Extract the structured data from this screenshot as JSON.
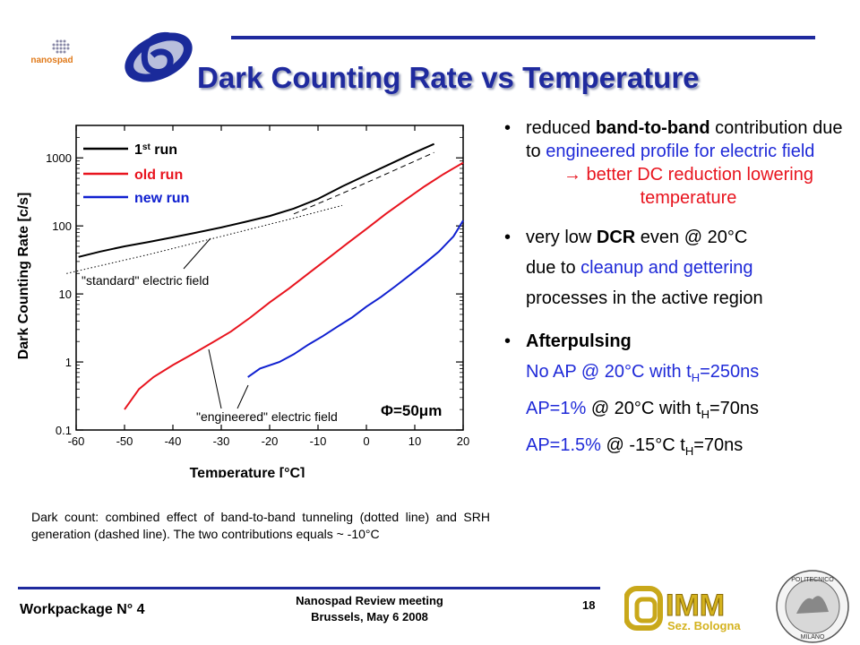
{
  "slide": {
    "title": "Dark Counting Rate vs Temperature",
    "nanospad_logo_text": "nanospad",
    "imm_logo_text": "IMM",
    "imm_logo_sub": "Sez. Bologna",
    "polimi_logo_text_top": "POLITECNICO",
    "polimi_logo_text_bottom": "MILANO"
  },
  "footer": {
    "workpackage": "Workpackage N° 4",
    "meeting_line1": "Nanospad Review meeting",
    "meeting_line2": "Brussels, May 6 2008",
    "page_number": "18"
  },
  "caption": "Dark count: combined effect of band-to-band tunneling (dotted line) and SRH generation (dashed line). The two contributions equals ~ -10°C",
  "bullets": {
    "b1_pre": "reduced ",
    "b1_bold": "band-to-band",
    "b1_post": " contribution due to ",
    "b1_blue": "engineered profile for electric field",
    "b1_red": "→ better DC reduction lowering temperature",
    "b2_pre": "very low ",
    "b2_bold": "DCR",
    "b2_post": " even @ 20°C",
    "b2_line2_pre": "due to ",
    "b2_line2_blue": "cleanup and gettering",
    "b2_line3": "processes in the active region",
    "b3_title": "Afterpulsing",
    "ap1_blue": "No AP",
    "ap1_rest": " @ 20°C with t",
    "ap1_sub": "H",
    "ap1_end": "=250ns",
    "ap2_blue": "AP=1%",
    "ap2_rest": " @ 20°C with t",
    "ap2_sub": "H",
    "ap2_end": "=70ns",
    "ap3_blue": "AP=1.5%",
    "ap3_rest": " @ -15°C  t",
    "ap3_sub": "H",
    "ap3_end": "=70ns"
  },
  "chart_data": {
    "type": "line",
    "xlabel": "Temperature [°C]",
    "ylabel": "Dark Counting Rate [c/s]",
    "xlim": [
      -60,
      20
    ],
    "ylim": [
      0.1,
      3000
    ],
    "yscale": "log",
    "xticks": [
      "-60",
      "-50",
      "-40",
      "-30",
      "-20",
      "-10",
      "0",
      "10",
      "20"
    ],
    "yticks": [
      "0.1",
      "1",
      "10",
      "100",
      "1000"
    ],
    "legend_position": "top-left",
    "legend": {
      "s1_main": "1",
      "s1_sup": "st",
      "s1_end": " run",
      "s2": "old run",
      "s3": "new run"
    },
    "annotations": {
      "standard": "\"standard\" electric field",
      "engineered": "\"engineered\" electric field",
      "phi": "Φ=50μm"
    },
    "series": [
      {
        "name": "1st run",
        "color": "#000000",
        "x": [
          -59.5,
          -55,
          -50,
          -45,
          -40,
          -35,
          -30,
          -25,
          -20,
          -15,
          -10,
          -5,
          0,
          5,
          10,
          14
        ],
        "y": [
          35,
          42,
          50,
          58,
          68,
          80,
          95,
          115,
          140,
          180,
          250,
          380,
          560,
          820,
          1200,
          1600
        ]
      },
      {
        "name": "old run",
        "color": "#e8141e",
        "x": [
          -50,
          -47,
          -44,
          -40,
          -36,
          -32,
          -28,
          -24,
          -20,
          -16,
          -12,
          -8,
          -4,
          0,
          4,
          8,
          12,
          16,
          20
        ],
        "y": [
          0.2,
          0.4,
          0.6,
          0.9,
          1.3,
          1.9,
          2.8,
          4.5,
          7.5,
          12,
          20,
          33,
          55,
          90,
          150,
          240,
          380,
          580,
          850
        ]
      },
      {
        "name": "new run",
        "color": "#1020d0",
        "x": [
          -24.5,
          -22,
          -18,
          -15,
          -12,
          -9,
          -6,
          -3,
          0,
          3,
          6,
          9,
          12,
          15,
          18,
          20
        ],
        "y": [
          0.6,
          0.8,
          1.0,
          1.3,
          1.8,
          2.4,
          3.3,
          4.5,
          6.5,
          9,
          13,
          19,
          28,
          42,
          70,
          120
        ]
      },
      {
        "color": "#000000",
        "style": "dotted",
        "x": [
          -62,
          -45,
          -30,
          -15,
          -5
        ],
        "y": [
          20,
          38,
          70,
          130,
          200
        ]
      },
      {
        "color": "#000000",
        "style": "dashed",
        "x": [
          -15,
          -5,
          5,
          14
        ],
        "y": [
          150,
          300,
          620,
          1200
        ]
      }
    ]
  }
}
